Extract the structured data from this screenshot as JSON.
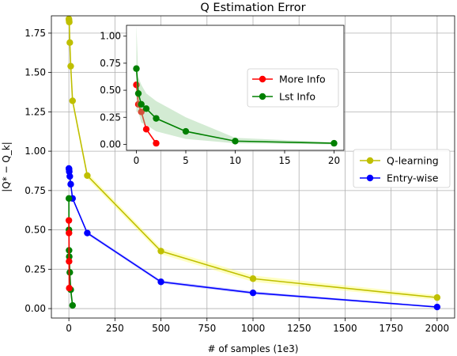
{
  "chart_data": [
    {
      "id": "main",
      "type": "line",
      "title": "Q Estimation Error",
      "xlabel": "# of samples (1e3)",
      "ylabel": "|Q* − Q_k|",
      "xlim": [
        -95,
        2095
      ],
      "ylim": [
        -0.06,
        1.86
      ],
      "xticks": [
        0,
        250,
        500,
        750,
        1000,
        1250,
        1500,
        1750,
        2000
      ],
      "yticks": [
        0.0,
        0.25,
        0.5,
        0.75,
        1.0,
        1.25,
        1.5,
        1.75
      ],
      "xtick_labels": [
        "0",
        "250",
        "500",
        "750",
        "1000",
        "1250",
        "1500",
        "1750",
        "2000"
      ],
      "ytick_labels": [
        "0.00",
        "0.25",
        "0.50",
        "0.75",
        "1.00",
        "1.25",
        "1.50",
        "1.75"
      ],
      "grid": true,
      "legend_position": "right",
      "series": [
        {
          "name": "Q-learning",
          "color": "#bfbf00",
          "band_color": "#ffff66",
          "x": [
            0,
            1,
            2,
            5,
            10,
            20,
            100,
            500,
            1000,
            2000
          ],
          "y": [
            1.84,
            1.83,
            1.82,
            1.69,
            1.54,
            1.32,
            0.845,
            0.365,
            0.19,
            0.07
          ],
          "band": [
            0.02,
            0.02,
            0.02,
            0.02,
            0.02,
            0.02,
            0.02,
            0.02,
            0.02,
            0.015
          ]
        },
        {
          "name": "Entry-wise",
          "color": "#0000ff",
          "band_color": "#9999ff",
          "x": [
            0,
            1,
            2,
            5,
            10,
            20,
            100,
            500,
            1000,
            2000
          ],
          "y": [
            0.89,
            0.885,
            0.87,
            0.84,
            0.79,
            0.7,
            0.48,
            0.17,
            0.1,
            0.01
          ],
          "band": [
            0.01,
            0.01,
            0.01,
            0.01,
            0.01,
            0.01,
            0.01,
            0.01,
            0.01,
            0.005
          ]
        },
        {
          "name": "Lst Info",
          "color": "#008000",
          "legend": false,
          "x": [
            0,
            0.5,
            1,
            2,
            5,
            10,
            20
          ],
          "y": [
            0.7,
            0.5,
            0.37,
            0.33,
            0.23,
            0.12,
            0.02
          ],
          "band": [
            0.05,
            0.05,
            0.05,
            0.05,
            0.05,
            0.05,
            0.02
          ]
        },
        {
          "name": "More Info",
          "color": "#ff0000",
          "legend": false,
          "x": [
            0,
            0.5,
            1,
            2
          ],
          "y": [
            0.56,
            0.48,
            0.3,
            0.13
          ],
          "band": [
            0,
            0,
            0,
            0
          ]
        }
      ]
    },
    {
      "id": "inset",
      "type": "line",
      "title": "",
      "xlim": [
        -1,
        21
      ],
      "ylim": [
        -0.055,
        1.1
      ],
      "xticks": [
        0,
        5,
        10,
        15,
        20
      ],
      "yticks": [
        0.0,
        0.25,
        0.5,
        0.75,
        1.0
      ],
      "xtick_labels": [
        "0",
        "5",
        "10",
        "15",
        "20"
      ],
      "ytick_labels": [
        "0.00",
        "0.25",
        "0.50",
        "0.75",
        "1.00"
      ],
      "grid": false,
      "legend_position": "upper-right",
      "series": [
        {
          "name": "More Info",
          "color": "#ff0000",
          "x": [
            0,
            0.2,
            0.5,
            1,
            2
          ],
          "y": [
            0.55,
            0.37,
            0.3,
            0.14,
            0.01
          ],
          "band": [
            0,
            0,
            0,
            0,
            0
          ]
        },
        {
          "name": "Lst Info",
          "color": "#008000",
          "band_color": "#90cc90",
          "x": [
            0,
            0.2,
            0.5,
            1,
            2,
            5,
            10,
            20
          ],
          "y": [
            0.7,
            0.47,
            0.37,
            0.33,
            0.24,
            0.12,
            0.03,
            0.01
          ],
          "band_upper": [
            1.1,
            0.62,
            0.55,
            0.47,
            0.4,
            0.25,
            0.06,
            0.02
          ],
          "band_lower": [
            0.3,
            0.3,
            0.2,
            0.18,
            0.12,
            0.05,
            0.01,
            0.0
          ]
        }
      ]
    }
  ]
}
